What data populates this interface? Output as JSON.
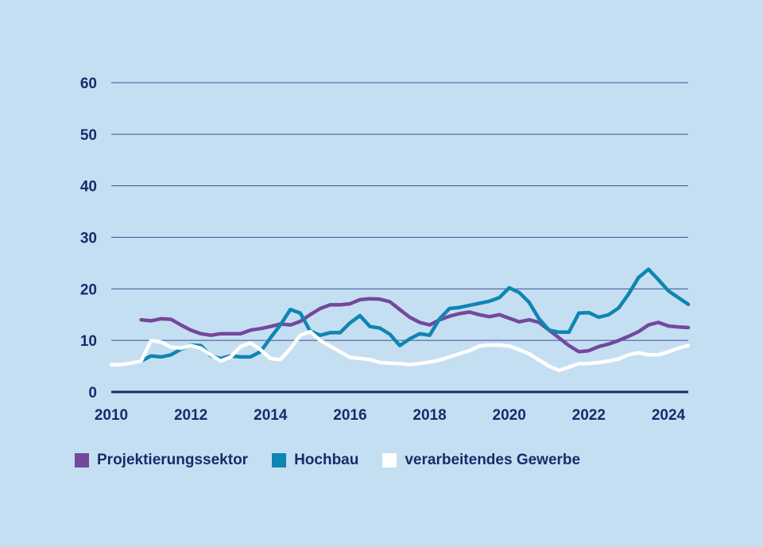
{
  "chart_data": {
    "type": "line",
    "ylim": [
      0,
      60
    ],
    "xlim": [
      2010,
      2024.5
    ],
    "y_ticks": [
      "0",
      "10",
      "20",
      "30",
      "40",
      "50",
      "60"
    ],
    "x_ticks": [
      "2010",
      "2012",
      "2014",
      "2016",
      "2018",
      "2020",
      "2022",
      "2024"
    ],
    "grid": true,
    "legend_position": "bottom",
    "colors": {
      "background": "#c5dff2",
      "grid": "#3d4f8f",
      "axis": "#1a2a6c",
      "text": "#1a2a6c"
    },
    "series": [
      {
        "name": "Projektierungssektor",
        "color": "#74489d",
        "x": [
          2010.75,
          2011.0,
          2011.25,
          2011.5,
          2011.75,
          2012.0,
          2012.25,
          2012.5,
          2012.75,
          2013.0,
          2013.25,
          2013.5,
          2013.75,
          2014.0,
          2014.25,
          2014.5,
          2014.75,
          2015.0,
          2015.25,
          2015.5,
          2015.75,
          2016.0,
          2016.25,
          2016.5,
          2016.75,
          2017.0,
          2017.25,
          2017.5,
          2017.75,
          2018.0,
          2018.25,
          2018.5,
          2018.75,
          2019.0,
          2019.25,
          2019.5,
          2019.75,
          2020.0,
          2020.25,
          2020.5,
          2020.75,
          2021.0,
          2021.25,
          2021.5,
          2021.75,
          2022.0,
          2022.25,
          2022.5,
          2022.75,
          2023.0,
          2023.25,
          2023.5,
          2023.75,
          2024.0,
          2024.25,
          2024.5
        ],
        "y": [
          14.0,
          13.8,
          14.2,
          14.1,
          13.0,
          12.0,
          11.3,
          11.0,
          11.3,
          11.3,
          11.3,
          12.0,
          12.3,
          12.7,
          13.2,
          13.0,
          13.7,
          15.0,
          16.2,
          16.9,
          16.9,
          17.1,
          17.9,
          18.1,
          18.0,
          17.5,
          16.0,
          14.5,
          13.5,
          13.0,
          14.0,
          14.7,
          15.2,
          15.5,
          15.0,
          14.6,
          15.0,
          14.3,
          13.6,
          14.0,
          13.5,
          12.0,
          10.5,
          9.0,
          7.8,
          8.0,
          8.8,
          9.3,
          10.0,
          10.8,
          11.7,
          13.0,
          13.5,
          12.8,
          12.6,
          12.5
        ]
      },
      {
        "name": "Hochbau",
        "color": "#0f85b2",
        "x": [
          2010.75,
          2011.0,
          2011.25,
          2011.5,
          2011.75,
          2012.0,
          2012.25,
          2012.5,
          2012.75,
          2013.0,
          2013.25,
          2013.5,
          2013.75,
          2014.0,
          2014.25,
          2014.5,
          2014.75,
          2015.0,
          2015.25,
          2015.5,
          2015.75,
          2016.0,
          2016.25,
          2016.5,
          2016.75,
          2017.0,
          2017.25,
          2017.5,
          2017.75,
          2018.0,
          2018.25,
          2018.5,
          2018.75,
          2019.0,
          2019.25,
          2019.5,
          2019.75,
          2020.0,
          2020.25,
          2020.5,
          2020.75,
          2021.0,
          2021.25,
          2021.5,
          2021.75,
          2022.0,
          2022.25,
          2022.5,
          2022.75,
          2023.0,
          2023.25,
          2023.5,
          2023.75,
          2024.0,
          2024.25,
          2024.5
        ],
        "y": [
          6.0,
          7.0,
          6.8,
          7.2,
          8.3,
          9.1,
          9.0,
          7.0,
          6.5,
          7.0,
          6.8,
          6.8,
          7.8,
          10.5,
          13.0,
          16.0,
          15.3,
          11.8,
          11.0,
          11.5,
          11.5,
          13.4,
          14.8,
          12.7,
          12.4,
          11.2,
          9.0,
          10.3,
          11.3,
          11.0,
          14.2,
          16.2,
          16.4,
          16.8,
          17.2,
          17.6,
          18.3,
          20.2,
          19.3,
          17.4,
          14.2,
          12.0,
          11.6,
          11.6,
          15.3,
          15.4,
          14.5,
          15.0,
          16.3,
          19.0,
          22.2,
          23.8,
          21.8,
          19.6,
          18.3,
          17.0
        ]
      },
      {
        "name": "verarbeitendes Gewerbe",
        "color": "#ffffff",
        "x": [
          2010.0,
          2010.25,
          2010.5,
          2010.75,
          2011.0,
          2011.25,
          2011.5,
          2011.75,
          2012.0,
          2012.25,
          2012.5,
          2012.75,
          2013.0,
          2013.25,
          2013.5,
          2013.75,
          2014.0,
          2014.25,
          2014.5,
          2014.75,
          2015.0,
          2015.25,
          2015.5,
          2015.75,
          2016.0,
          2016.25,
          2016.5,
          2016.75,
          2017.0,
          2017.25,
          2017.5,
          2017.75,
          2018.0,
          2018.25,
          2018.5,
          2018.75,
          2019.0,
          2019.25,
          2019.5,
          2019.75,
          2020.0,
          2020.25,
          2020.5,
          2020.75,
          2021.0,
          2021.25,
          2021.5,
          2021.75,
          2022.0,
          2022.25,
          2022.5,
          2022.75,
          2023.0,
          2023.25,
          2023.5,
          2023.75,
          2024.0,
          2024.25,
          2024.5
        ],
        "y": [
          5.3,
          5.3,
          5.6,
          6.0,
          10.0,
          9.7,
          8.7,
          8.5,
          9.0,
          8.5,
          7.2,
          6.0,
          6.8,
          8.8,
          9.5,
          8.2,
          6.5,
          6.3,
          8.4,
          11.0,
          11.7,
          10.0,
          8.9,
          7.8,
          6.7,
          6.5,
          6.3,
          5.7,
          5.6,
          5.5,
          5.3,
          5.5,
          5.8,
          6.2,
          6.8,
          7.4,
          8.0,
          8.9,
          9.1,
          9.1,
          8.9,
          8.2,
          7.4,
          6.2,
          5.0,
          4.2,
          4.8,
          5.5,
          5.5,
          5.7,
          6.0,
          6.4,
          7.2,
          7.6,
          7.2,
          7.2,
          7.8,
          8.5,
          9.0
        ]
      }
    ]
  }
}
